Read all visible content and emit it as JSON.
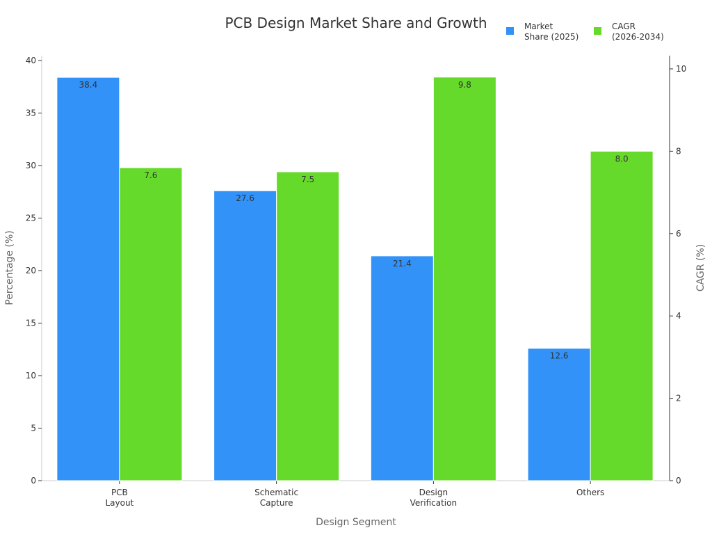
{
  "chart_data": {
    "type": "bar",
    "title": "PCB Design Market Share and Growth",
    "xlabel": "Design Segment",
    "ylabel": "Percentage (%)",
    "y2label": "CAGR (%)",
    "categories": [
      [
        "PCB",
        "Layout"
      ],
      [
        "Schematic",
        "Capture"
      ],
      [
        "Design",
        "Verification"
      ],
      [
        "Others"
      ]
    ],
    "ylim": [
      0,
      40
    ],
    "yticks": [
      0,
      5,
      10,
      15,
      20,
      25,
      30,
      35,
      40
    ],
    "y2lim": [
      0,
      10
    ],
    "y2ticks": [
      0,
      2,
      4,
      6,
      8,
      10
    ],
    "grid": false,
    "legend_placement": "top-right",
    "series": [
      {
        "name": [
          "Market",
          "Share (2025)"
        ],
        "axis": "left",
        "color": "#3292f7",
        "values": [
          38.4,
          27.6,
          21.4,
          12.6
        ],
        "labels": [
          "38.4",
          "27.6",
          "21.4",
          "12.6"
        ]
      },
      {
        "name": [
          "CAGR",
          "(2026-2034)"
        ],
        "axis": "right",
        "color": "#66da2a",
        "values": [
          7.6,
          7.5,
          9.8,
          8.0
        ],
        "labels": [
          "7.6",
          "7.5",
          "9.8",
          "8.0"
        ]
      }
    ]
  }
}
